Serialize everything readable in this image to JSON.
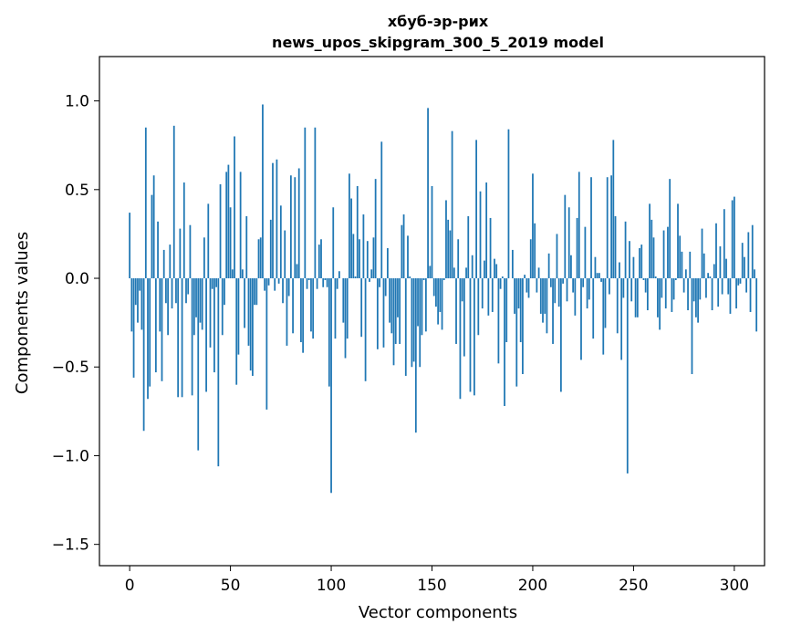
{
  "chart_data": {
    "type": "bar",
    "title_line1": "хбуб-эр-рих",
    "title_line2": "news_upos_skipgram_300_5_2019 model",
    "xlabel": "Vector components",
    "ylabel": "Components values",
    "xlim": [
      -15,
      315
    ],
    "ylim": [
      -1.62,
      1.25
    ],
    "xticks": [
      0,
      50,
      100,
      150,
      200,
      250,
      300
    ],
    "xtick_labels": [
      "0",
      "50",
      "100",
      "150",
      "200",
      "250",
      "300"
    ],
    "yticks": [
      -1.5,
      -1.0,
      -0.5,
      0.0,
      0.5,
      1.0
    ],
    "ytick_labels": [
      "−1.5",
      "−1.0",
      "−0.5",
      "0.0",
      "0.5",
      "1.0"
    ],
    "grid": false,
    "bar_color": "#1f77b4",
    "values": [
      0.37,
      -0.3,
      -0.56,
      -0.15,
      -0.25,
      -0.07,
      -0.29,
      -0.86,
      0.85,
      -0.68,
      -0.61,
      0.47,
      0.58,
      -0.53,
      0.32,
      -0.3,
      -0.58,
      0.16,
      -0.14,
      -0.32,
      0.19,
      -0.17,
      0.86,
      -0.14,
      -0.67,
      0.28,
      -0.67,
      0.54,
      -0.14,
      -0.09,
      0.3,
      -0.66,
      -0.32,
      -0.22,
      -0.97,
      -0.25,
      -0.29,
      0.23,
      -0.64,
      0.42,
      -0.39,
      -0.06,
      -0.53,
      -0.05,
      -1.06,
      0.53,
      -0.32,
      -0.15,
      0.6,
      0.64,
      0.4,
      0.05,
      0.8,
      -0.6,
      -0.43,
      0.6,
      0.05,
      -0.28,
      0.35,
      -0.38,
      -0.52,
      -0.55,
      -0.15,
      -0.15,
      0.22,
      0.23,
      0.98,
      -0.07,
      -0.74,
      -0.04,
      0.33,
      0.65,
      -0.07,
      0.67,
      -0.03,
      0.41,
      -0.14,
      0.27,
      -0.38,
      -0.1,
      0.58,
      -0.31,
      0.57,
      0.08,
      0.62,
      -0.36,
      -0.42,
      0.85,
      -0.06,
      -0.01,
      -0.3,
      -0.34,
      0.85,
      -0.06,
      0.19,
      0.22,
      -0.05,
      -0.01,
      -0.05,
      -0.61,
      -1.21,
      0.4,
      -0.34,
      -0.06,
      0.04,
      0.0,
      -0.25,
      -0.45,
      -0.34,
      0.59,
      0.45,
      0.25,
      0.01,
      0.52,
      0.22,
      -0.33,
      0.36,
      -0.58,
      0.21,
      -0.02,
      0.05,
      0.23,
      0.56,
      -0.4,
      -0.05,
      0.77,
      -0.39,
      -0.1,
      0.17,
      -0.25,
      -0.31,
      -0.49,
      -0.37,
      -0.22,
      -0.37,
      0.3,
      0.36,
      -0.55,
      0.24,
      0.01,
      -0.5,
      -0.47,
      -0.87,
      -0.27,
      -0.5,
      -0.32,
      -0.01,
      -0.3,
      0.96,
      0.07,
      0.52,
      -0.1,
      -0.16,
      -0.26,
      -0.19,
      -0.29,
      -0.01,
      0.44,
      0.33,
      0.27,
      0.83,
      0.06,
      -0.37,
      0.22,
      -0.68,
      -0.13,
      -0.44,
      0.06,
      0.35,
      -0.64,
      0.13,
      -0.66,
      0.78,
      -0.32,
      0.49,
      -0.17,
      0.1,
      0.54,
      -0.21,
      0.34,
      -0.19,
      0.11,
      0.08,
      -0.48,
      -0.06,
      0.01,
      -0.72,
      -0.36,
      0.84,
      0.0,
      0.16,
      -0.2,
      -0.61,
      -0.17,
      -0.36,
      -0.54,
      0.02,
      -0.08,
      -0.11,
      0.22,
      0.59,
      0.31,
      -0.08,
      0.06,
      -0.2,
      -0.25,
      -0.2,
      -0.31,
      0.14,
      -0.05,
      -0.37,
      -0.14,
      0.25,
      -0.16,
      -0.64,
      -0.03,
      0.47,
      -0.13,
      0.4,
      0.13,
      -0.08,
      -0.21,
      0.34,
      0.6,
      -0.46,
      -0.05,
      0.29,
      -0.17,
      -0.12,
      0.57,
      -0.34,
      0.12,
      0.03,
      0.03,
      -0.02,
      -0.43,
      -0.28,
      0.57,
      -0.09,
      0.58,
      0.78,
      0.35,
      -0.31,
      0.09,
      -0.46,
      -0.11,
      0.32,
      -1.1,
      0.21,
      -0.13,
      0.12,
      -0.22,
      -0.22,
      0.17,
      0.19,
      -0.01,
      -0.08,
      -0.18,
      0.42,
      0.33,
      0.23,
      0.01,
      -0.22,
      -0.29,
      -0.11,
      0.27,
      -0.17,
      0.29,
      0.56,
      -0.19,
      -0.12,
      -0.01,
      0.42,
      0.24,
      0.15,
      -0.08,
      0.05,
      -0.18,
      0.15,
      -0.54,
      -0.13,
      -0.22,
      -0.25,
      -0.12,
      0.28,
      0.14,
      -0.11,
      0.03,
      0.01,
      -0.18,
      0.08,
      0.31,
      -0.16,
      0.18,
      -0.09,
      0.39,
      0.11,
      -0.09,
      -0.2,
      0.44,
      0.46,
      -0.17,
      -0.04,
      -0.03,
      0.2,
      0.12,
      -0.08,
      0.26,
      -0.19,
      0.3,
      0.05,
      -0.3
    ]
  }
}
